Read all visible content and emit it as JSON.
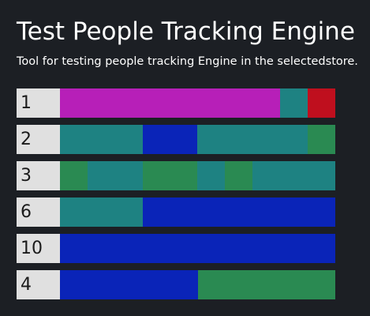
{
  "header": {
    "title": "Test People Tracking Engine",
    "subtitle": "Tool for testing people tracking Engine in the selectedstore."
  },
  "colors": {
    "magenta": "#b71fb8",
    "teal": "#1e8282",
    "red": "#bf0f1e",
    "blue": "#0a24b8",
    "green": "#2a8a52",
    "label_bg": "#e0e0e0",
    "background": "#1c1f24"
  },
  "tracks": [
    {
      "id": "1",
      "segments": [
        {
          "color": "magenta",
          "share": 0.8
        },
        {
          "color": "teal",
          "share": 0.1
        },
        {
          "color": "red",
          "share": 0.1
        }
      ]
    },
    {
      "id": "2",
      "segments": [
        {
          "color": "teal",
          "share": 0.3
        },
        {
          "color": "blue",
          "share": 0.2
        },
        {
          "color": "teal",
          "share": 0.4
        },
        {
          "color": "green",
          "share": 0.1
        }
      ]
    },
    {
      "id": "3",
      "segments": [
        {
          "color": "green",
          "share": 0.1
        },
        {
          "color": "teal",
          "share": 0.2
        },
        {
          "color": "green",
          "share": 0.2
        },
        {
          "color": "teal",
          "share": 0.1
        },
        {
          "color": "green",
          "share": 0.1
        },
        {
          "color": "teal",
          "share": 0.3
        }
      ]
    },
    {
      "id": "6",
      "segments": [
        {
          "color": "teal",
          "share": 0.3
        },
        {
          "color": "blue",
          "share": 0.7
        }
      ]
    },
    {
      "id": "10",
      "segments": [
        {
          "color": "blue",
          "share": 1.0
        }
      ]
    },
    {
      "id": "4",
      "segments": [
        {
          "color": "blue",
          "share": 0.5
        },
        {
          "color": "green",
          "share": 0.5
        }
      ]
    }
  ]
}
